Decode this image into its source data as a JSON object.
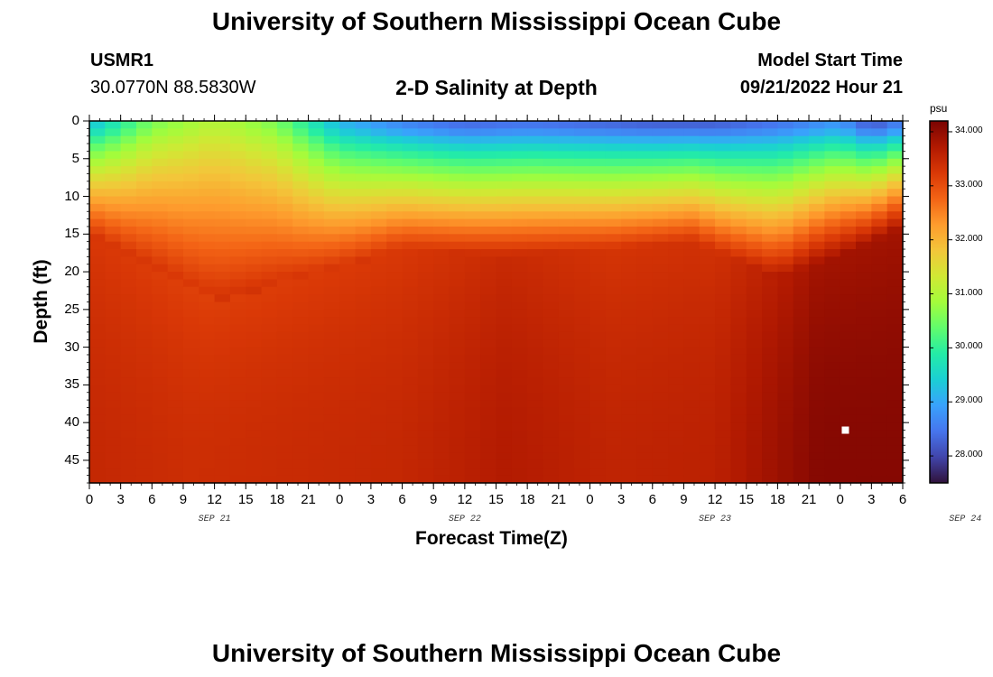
{
  "header": {
    "title": "University of Southern Mississippi Ocean Cube",
    "station_id": "USMR1",
    "station_coords": "30.0770N  88.5830W",
    "plot_title": "2-D Salinity at Depth",
    "model_start_label": "Model Start Time",
    "model_start_value": "09/21/2022 Hour 21"
  },
  "footer": {
    "title": "University of Southern Mississippi Ocean Cube"
  },
  "colors": {
    "colormap": [
      "#30123b",
      "#4145ab",
      "#4675ed",
      "#39a2fc",
      "#1bcfd4",
      "#24eca6",
      "#61fc6c",
      "#a4fc3b",
      "#d1e834",
      "#f3c63a",
      "#fe9b2d",
      "#f36315",
      "#d93806",
      "#b11901",
      "#7a0402"
    ],
    "marker": "#ffffff"
  },
  "chart_data": {
    "type": "heatmap",
    "title": "2-D Salinity at Depth",
    "xlabel": "Forecast Time(Z)",
    "ylabel": "Depth (ft)",
    "x_tick_labels": [
      "0",
      "3",
      "6",
      "9",
      "12",
      "15",
      "18",
      "21",
      "0",
      "3",
      "6",
      "9",
      "12",
      "15",
      "18",
      "21",
      "0",
      "3",
      "6",
      "9",
      "12",
      "15",
      "18",
      "21",
      "0",
      "3",
      "6"
    ],
    "date_labels": [
      {
        "label": "SEP 21",
        "hour": 12
      },
      {
        "label": "SEP 22",
        "hour": 36
      },
      {
        "label": "SEP 23",
        "hour": 60
      },
      {
        "label": "SEP 24",
        "hour": 84
      }
    ],
    "xlim_hours": [
      0,
      78
    ],
    "y_ticks": [
      0,
      5,
      10,
      15,
      20,
      25,
      30,
      35,
      40,
      45
    ],
    "ylim": [
      0,
      48
    ],
    "y_inverted": true,
    "colorbar": {
      "unit": "psu",
      "min": 27.5,
      "max": 34.2,
      "ticks": [
        "28.000",
        "29.000",
        "30.000",
        "31.000",
        "32.000",
        "33.000",
        "34.000"
      ]
    },
    "cell_hours": 1.5,
    "cell_depth_ft": 1,
    "surface_profile_psu": {
      "hours": [
        0,
        6,
        12,
        18,
        24,
        30,
        36,
        42,
        48,
        54,
        60,
        66,
        72,
        75,
        78
      ],
      "values": [
        29.3,
        30.6,
        31.1,
        30.6,
        29.2,
        28.7,
        28.4,
        28.5,
        28.4,
        28.3,
        28.3,
        28.5,
        28.9,
        28.2,
        28.7
      ]
    },
    "bottom_profile_psu": {
      "hours": [
        0,
        10,
        20,
        30,
        40,
        50,
        60,
        70,
        78
      ],
      "values": [
        33.5,
        33.4,
        33.45,
        33.5,
        33.7,
        33.55,
        33.6,
        34.1,
        34.1
      ]
    },
    "halocline_depth_ft": {
      "hours": [
        0,
        12,
        20,
        30,
        40,
        50,
        58,
        66,
        72,
        78
      ],
      "values": [
        15,
        24,
        21,
        17,
        18,
        17,
        16,
        21,
        18,
        14
      ]
    },
    "marker": {
      "hour": 72.5,
      "depth_ft": 41
    }
  }
}
